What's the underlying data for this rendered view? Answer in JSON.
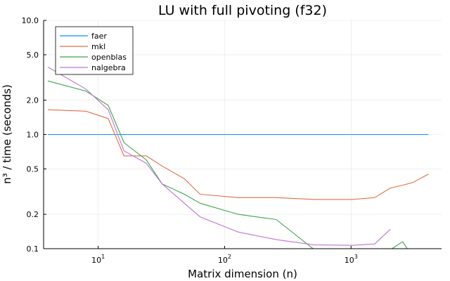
{
  "chart_data": {
    "type": "line",
    "title": "LU with full pivoting (f32)",
    "xlabel": "Matrix dimension (n)",
    "ylabel": "n³ / time (seconds)",
    "xscale": "log",
    "yscale": "log",
    "xlim": [
      3.7,
      5200
    ],
    "ylim": [
      0.1,
      10.0
    ],
    "x_ticks": [
      {
        "value": 10,
        "base": "10",
        "exp": "1"
      },
      {
        "value": 100,
        "base": "10",
        "exp": "2"
      },
      {
        "value": 1000,
        "base": "10",
        "exp": "3"
      }
    ],
    "y_ticks": [
      {
        "value": 0.1,
        "label": "0.1"
      },
      {
        "value": 0.2,
        "label": "0.2"
      },
      {
        "value": 0.5,
        "label": "0.5"
      },
      {
        "value": 1.0,
        "label": "1.0"
      },
      {
        "value": 2.0,
        "label": "2.0"
      },
      {
        "value": 5.0,
        "label": "5.0"
      },
      {
        "value": 10.0,
        "label": "10.0"
      }
    ],
    "grid": true,
    "legend_position": "top-left",
    "series": [
      {
        "name": "faer",
        "color": "#009AFA",
        "points": [
          [
            4,
            1.0
          ],
          [
            8,
            1.0
          ],
          [
            12,
            1.0
          ],
          [
            16,
            1.0
          ],
          [
            24,
            1.0
          ],
          [
            32,
            1.0
          ],
          [
            48,
            1.0
          ],
          [
            64,
            1.0
          ],
          [
            128,
            1.0
          ],
          [
            256,
            1.0
          ],
          [
            512,
            1.0
          ],
          [
            1024,
            1.0
          ],
          [
            1536,
            1.0
          ],
          [
            2048,
            1.0
          ],
          [
            2560,
            1.0
          ],
          [
            3072,
            1.0
          ],
          [
            4096,
            1.0
          ]
        ]
      },
      {
        "name": "mkl",
        "color": "#E26F46",
        "points": [
          [
            4,
            1.65
          ],
          [
            8,
            1.6
          ],
          [
            12,
            1.38
          ],
          [
            16,
            0.65
          ],
          [
            24,
            0.65
          ],
          [
            32,
            0.53
          ],
          [
            48,
            0.41
          ],
          [
            64,
            0.3
          ],
          [
            128,
            0.28
          ],
          [
            256,
            0.28
          ],
          [
            512,
            0.27
          ],
          [
            1024,
            0.27
          ],
          [
            1536,
            0.28
          ],
          [
            2048,
            0.34
          ],
          [
            2560,
            0.36
          ],
          [
            3072,
            0.38
          ],
          [
            4096,
            0.45
          ]
        ]
      },
      {
        "name": "openblas",
        "color": "#3EA44E",
        "points": [
          [
            4,
            2.95
          ],
          [
            8,
            2.4
          ],
          [
            12,
            1.8
          ],
          [
            16,
            0.85
          ],
          [
            24,
            0.6
          ],
          [
            32,
            0.37
          ],
          [
            48,
            0.3
          ],
          [
            64,
            0.25
          ],
          [
            128,
            0.2
          ],
          [
            256,
            0.18
          ],
          [
            512,
            0.098
          ],
          [
            1024,
            0.097
          ],
          [
            1536,
            0.097
          ],
          [
            2048,
            0.098
          ],
          [
            2560,
            0.115
          ],
          [
            3072,
            0.085
          ],
          [
            4096,
            0.09
          ]
        ]
      },
      {
        "name": "nalgebra",
        "color": "#C271D2",
        "points": [
          [
            4,
            3.9
          ],
          [
            8,
            2.5
          ],
          [
            12,
            1.65
          ],
          [
            16,
            0.72
          ],
          [
            24,
            0.56
          ],
          [
            32,
            0.37
          ],
          [
            48,
            0.25
          ],
          [
            64,
            0.19
          ],
          [
            128,
            0.14
          ],
          [
            256,
            0.12
          ],
          [
            512,
            0.108
          ],
          [
            1024,
            0.107
          ],
          [
            1536,
            0.11
          ],
          [
            2048,
            0.148
          ]
        ]
      }
    ]
  }
}
